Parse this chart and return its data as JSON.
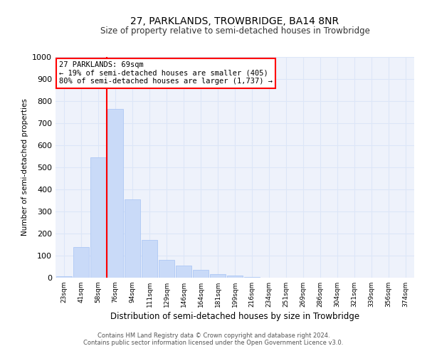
{
  "title1": "27, PARKLANDS, TROWBRIDGE, BA14 8NR",
  "title2": "Size of property relative to semi-detached houses in Trowbridge",
  "xlabel": "Distribution of semi-detached houses by size in Trowbridge",
  "ylabel": "Number of semi-detached properties",
  "bar_labels": [
    "23sqm",
    "41sqm",
    "58sqm",
    "76sqm",
    "94sqm",
    "111sqm",
    "129sqm",
    "146sqm",
    "164sqm",
    "181sqm",
    "199sqm",
    "216sqm",
    "234sqm",
    "251sqm",
    "269sqm",
    "286sqm",
    "304sqm",
    "321sqm",
    "339sqm",
    "356sqm",
    "374sqm"
  ],
  "bar_heights": [
    5,
    140,
    545,
    765,
    355,
    170,
    80,
    55,
    35,
    15,
    10,
    2,
    0,
    0,
    0,
    0,
    0,
    0,
    0,
    0,
    0
  ],
  "bar_color": "#c9daf8",
  "bar_edge_color": "#a4c2f4",
  "vline_x_index": 2.5,
  "vline_color": "red",
  "annotation_text": "27 PARKLANDS: 69sqm\n← 19% of semi-detached houses are smaller (405)\n80% of semi-detached houses are larger (1,737) →",
  "annotation_box_color": "white",
  "annotation_box_edge": "red",
  "ylim": [
    0,
    1000
  ],
  "yticks": [
    0,
    100,
    200,
    300,
    400,
    500,
    600,
    700,
    800,
    900,
    1000
  ],
  "grid_color": "#dce6f8",
  "bg_color": "#eef2fb",
  "footer1": "Contains HM Land Registry data © Crown copyright and database right 2024.",
  "footer2": "Contains public sector information licensed under the Open Government Licence v3.0."
}
